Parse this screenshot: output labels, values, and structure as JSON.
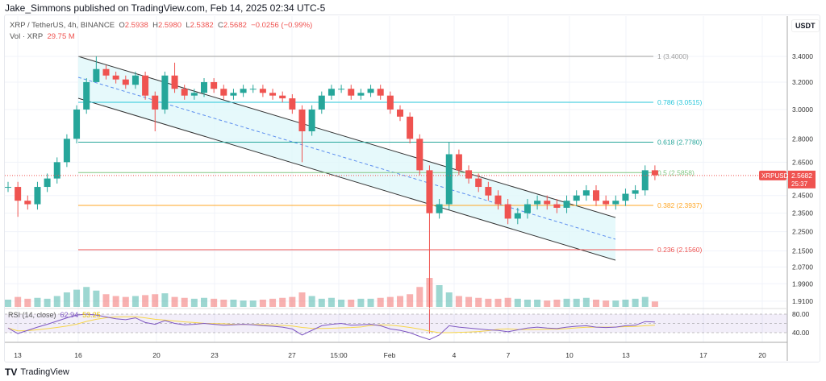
{
  "header": {
    "published": "Jake_Simmons published on TradingView.com, Feb 14, 2025 02:34 UTC-5"
  },
  "legend": {
    "symbol": "XRP / TetherUS, 4h, BINANCE",
    "o_label": "O",
    "o": "2.5938",
    "h_label": "H",
    "h": "2.5980",
    "l_label": "L",
    "l": "2.5382",
    "c_label": "C",
    "c": "2.5682",
    "change": "−0.0256 (−0.99%)",
    "vol_label": "Vol · XRP",
    "vol": "29.75 M"
  },
  "axis": {
    "unit": "USDT",
    "scale": "log",
    "price_ticks": [
      "3.4000",
      "3.2000",
      "3.0000",
      "2.8000",
      "2.6500",
      "2.4500",
      "2.3500",
      "2.2500",
      "2.1500",
      "2.0700",
      "1.9900",
      "1.9100"
    ],
    "rsi_ticks": [
      "80.00",
      "40.00"
    ],
    "time_ticks": [
      "13",
      "16",
      "20",
      "23",
      "27",
      "15:00",
      "Feb",
      "4",
      "7",
      "10",
      "13",
      "17",
      "20"
    ]
  },
  "price_tag": {
    "symbol": "XRPUSDT",
    "price": "2.5682",
    "countdown": "25:37",
    "color": "#ef5350"
  },
  "rsi": {
    "label": "RSI (14, close)",
    "value": "62.94",
    "ma": "53.25",
    "line_color": "#7e57c2",
    "ma_color": "#f7d64a"
  },
  "fib": [
    {
      "label": "1 (3.4000)",
      "price": 3.4,
      "color": "#9e9e9e"
    },
    {
      "label": "0.786 (3.0515)",
      "price": 3.0515,
      "color": "#26c6da"
    },
    {
      "label": "0.618 (2.7780)",
      "price": 2.778,
      "color": "#26a69a"
    },
    {
      "label": "0.5 (2.5858)",
      "price": 2.5858,
      "color": "#81c784"
    },
    {
      "label": "0.382 (2.3937)",
      "price": 2.3937,
      "color": "#ffa726"
    },
    {
      "label": "0.236 (2.1560)",
      "price": 2.156,
      "color": "#ef5350"
    }
  ],
  "colors": {
    "up": "#26a69a",
    "down": "#ef5350",
    "channel_fill": "#e0f7fa"
  },
  "chart_data": {
    "type": "candlestick",
    "interval": "12h",
    "start": "2025-01-12 12:00",
    "closes": [
      2.5,
      2.42,
      2.4,
      2.5,
      2.55,
      2.65,
      2.8,
      3.0,
      3.2,
      3.3,
      3.25,
      3.22,
      3.18,
      3.25,
      3.1,
      3.0,
      3.25,
      3.15,
      3.1,
      3.12,
      3.2,
      3.15,
      3.1,
      3.12,
      3.15,
      3.15,
      3.12,
      3.1,
      3.08,
      3.0,
      2.85,
      3.0,
      3.1,
      3.15,
      3.15,
      3.1,
      3.12,
      3.15,
      3.1,
      3.0,
      2.95,
      2.8,
      2.6,
      2.35,
      2.4,
      2.7,
      2.6,
      2.55,
      2.5,
      2.45,
      2.4,
      2.32,
      2.35,
      2.4,
      2.42,
      2.4,
      2.38,
      2.42,
      2.45,
      2.48,
      2.42,
      2.4,
      2.42,
      2.46,
      2.48,
      2.6,
      2.57
    ],
    "extreme_lows": {
      "1": 2.33,
      "9": 3.28,
      "15": 2.85,
      "30": 2.65,
      "43": 1.77
    },
    "extreme_highs": {
      "9": 3.4,
      "17": 3.35,
      "45": 2.78
    },
    "volume_m": [
      40,
      55,
      45,
      50,
      45,
      60,
      80,
      95,
      110,
      90,
      70,
      60,
      55,
      60,
      65,
      70,
      75,
      55,
      50,
      45,
      50,
      45,
      40,
      40,
      35,
      35,
      40,
      45,
      50,
      55,
      80,
      60,
      45,
      50,
      40,
      40,
      45,
      45,
      50,
      55,
      60,
      70,
      110,
      160,
      120,
      80,
      60,
      55,
      50,
      45,
      45,
      50,
      45,
      40,
      40,
      35,
      40,
      45,
      45,
      50,
      40,
      35,
      35,
      40,
      45,
      55,
      30
    ],
    "rsi": [
      50,
      38,
      45,
      52,
      58,
      65,
      72,
      78,
      80,
      78,
      74,
      70,
      68,
      72,
      62,
      58,
      66,
      60,
      57,
      58,
      60,
      58,
      56,
      57,
      58,
      57,
      55,
      54,
      52,
      48,
      35,
      45,
      55,
      58,
      60,
      56,
      57,
      58,
      55,
      48,
      45,
      40,
      32,
      25,
      35,
      55,
      52,
      50,
      48,
      46,
      45,
      42,
      46,
      50,
      52,
      50,
      49,
      52,
      54,
      55,
      52,
      51,
      52,
      55,
      56,
      64,
      63
    ]
  }
}
